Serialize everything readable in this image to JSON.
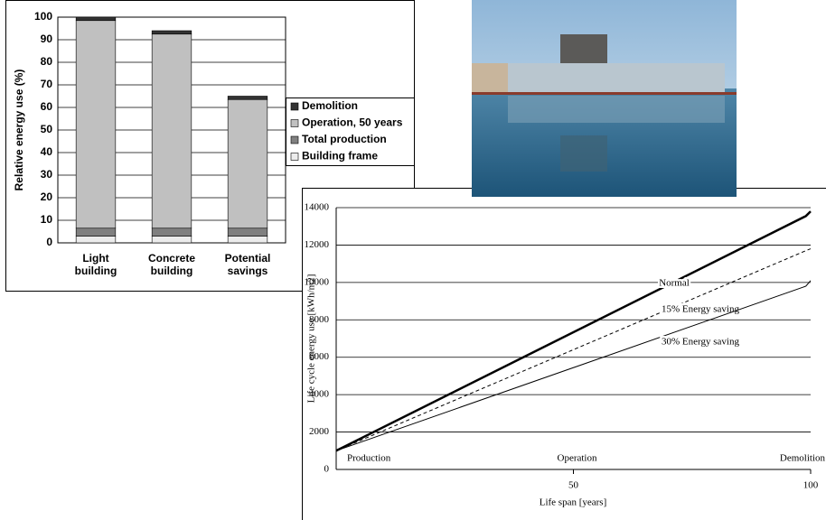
{
  "chart_data": [
    {
      "type": "bar",
      "stacked": true,
      "ylabel": "Relative energy use (%)",
      "categories": [
        "Light building",
        "Concrete building",
        "Potential savings"
      ],
      "series": [
        {
          "name": "Building frame",
          "color": "#ececec",
          "values": [
            3,
            3,
            3
          ]
        },
        {
          "name": "Total production",
          "color": "#808080",
          "values": [
            3.5,
            3.5,
            3.5
          ]
        },
        {
          "name": "Operation, 50 years",
          "color": "#c0c0c0",
          "values": [
            92,
            86,
            57
          ]
        },
        {
          "name": "Demolition",
          "color": "#333333",
          "values": [
            1.5,
            1.5,
            1.5
          ]
        }
      ],
      "ylim": [
        0,
        100
      ],
      "yticks": [
        0,
        10,
        20,
        30,
        40,
        50,
        60,
        70,
        80,
        90,
        100
      ],
      "grid": true,
      "legend": "right"
    },
    {
      "type": "line",
      "xlabel": "Life span [years]",
      "ylabel": "Life cycle energy use [kWh/m2]",
      "phase_labels": [
        "Production",
        "Operation",
        "Demolition"
      ],
      "x": [
        0,
        99,
        100
      ],
      "series": [
        {
          "name": "Normal",
          "color": "#000000",
          "width": 2.5,
          "dashed": false,
          "values": [
            1000,
            13550,
            13800
          ]
        },
        {
          "name": "15% Energy saving",
          "color": "#000000",
          "width": 1,
          "dashed": true,
          "values": [
            1000,
            11700,
            11800
          ]
        },
        {
          "name": "30% Energy saving",
          "color": "#000000",
          "width": 1,
          "dashed": false,
          "values": [
            1000,
            9800,
            10100
          ]
        }
      ],
      "xlim": [
        0,
        100
      ],
      "xticks": [
        50,
        100
      ],
      "ylim": [
        0,
        14000
      ],
      "yticks": [
        0,
        2000,
        4000,
        6000,
        8000,
        10000,
        12000,
        14000
      ],
      "grid": true
    }
  ]
}
